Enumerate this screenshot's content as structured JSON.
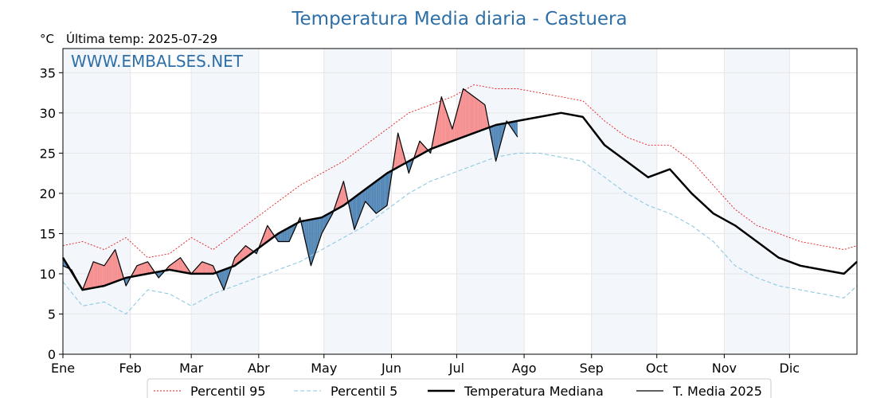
{
  "chart_data": {
    "type": "line",
    "title": "Temperatura Media diaria - Castuera",
    "unit_label": "°C",
    "subtitle": "Última temp: 2025-07-29",
    "watermark": "WWW.EMBALSES.NET",
    "x_axis": "day_of_year",
    "xlim": [
      1,
      366
    ],
    "ylim": [
      0,
      38
    ],
    "y_ticks": [
      0,
      5,
      10,
      15,
      20,
      25,
      30,
      35
    ],
    "month_ticks": [
      {
        "label": "Ene",
        "day": 1
      },
      {
        "label": "Feb",
        "day": 32
      },
      {
        "label": "Mar",
        "day": 60
      },
      {
        "label": "Abr",
        "day": 91
      },
      {
        "label": "May",
        "day": 121
      },
      {
        "label": "Jun",
        "day": 152
      },
      {
        "label": "Jul",
        "day": 182
      },
      {
        "label": "Ago",
        "day": 213
      },
      {
        "label": "Sep",
        "day": 244
      },
      {
        "label": "Oct",
        "day": 274
      },
      {
        "label": "Nov",
        "day": 305
      },
      {
        "label": "Dic",
        "day": 335
      }
    ],
    "shaded_months": [
      [
        1,
        32
      ],
      [
        60,
        91
      ],
      [
        121,
        152
      ],
      [
        182,
        213
      ],
      [
        244,
        274
      ],
      [
        305,
        335
      ]
    ],
    "grid": true,
    "legend": {
      "position": "bottom",
      "entries": [
        "Percentil 95",
        "Percentil 5",
        "Temperatura Mediana",
        "T. Media 2025"
      ]
    },
    "fill_colors": {
      "above_median": "#f47f7f",
      "below_median": "#3a75aa"
    },
    "series": [
      {
        "name": "Percentil 95",
        "color": "#e41a1c",
        "style": "dotted",
        "x": [
          1,
          10,
          20,
          30,
          40,
          50,
          60,
          70,
          80,
          90,
          100,
          110,
          120,
          130,
          140,
          150,
          160,
          170,
          180,
          190,
          200,
          210,
          220,
          230,
          240,
          250,
          260,
          270,
          280,
          290,
          300,
          310,
          320,
          330,
          340,
          350,
          360,
          366
        ],
        "values": [
          13.5,
          14,
          13,
          14.5,
          12,
          12.5,
          14.5,
          13,
          15,
          17,
          19,
          21,
          22.5,
          24,
          26,
          28,
          30,
          31,
          32,
          33.5,
          33,
          33,
          32.5,
          32,
          31.5,
          29,
          27,
          26,
          26,
          24,
          21,
          18,
          16,
          15,
          14,
          13.5,
          13,
          13.5
        ]
      },
      {
        "name": "Percentil 5",
        "color": "#8ec9e0",
        "style": "dashed",
        "x": [
          1,
          10,
          20,
          30,
          40,
          50,
          60,
          70,
          80,
          90,
          100,
          110,
          120,
          130,
          140,
          150,
          160,
          170,
          180,
          190,
          200,
          210,
          220,
          230,
          240,
          250,
          260,
          270,
          280,
          290,
          300,
          310,
          320,
          330,
          340,
          350,
          360,
          366
        ],
        "values": [
          9,
          6,
          6.5,
          5,
          8,
          7.5,
          6,
          7.5,
          8.5,
          9.5,
          10.5,
          11.5,
          13,
          14.5,
          16,
          18,
          20,
          21.5,
          22.5,
          23.5,
          24.5,
          25,
          25,
          24.5,
          24,
          22,
          20,
          18.5,
          17.5,
          16,
          14,
          11,
          9.5,
          8.5,
          8,
          7.5,
          7,
          8.5
        ]
      },
      {
        "name": "Temperatura Mediana",
        "color": "#000000",
        "style": "solid-thick",
        "x": [
          1,
          10,
          20,
          30,
          40,
          50,
          60,
          70,
          80,
          90,
          100,
          110,
          120,
          130,
          140,
          150,
          160,
          170,
          180,
          190,
          200,
          210,
          220,
          230,
          240,
          250,
          260,
          270,
          280,
          290,
          300,
          310,
          320,
          330,
          340,
          350,
          360,
          366
        ],
        "values": [
          12,
          8,
          8.5,
          9.5,
          10,
          10.5,
          10,
          10,
          11,
          13,
          15,
          16.5,
          17,
          18.5,
          20.5,
          22.5,
          24,
          25.5,
          26.5,
          27.5,
          28.5,
          29,
          29.5,
          30,
          29.5,
          26,
          24,
          22,
          23,
          20,
          17.5,
          16,
          14,
          12,
          11,
          10.5,
          10,
          11.5
        ]
      },
      {
        "name": "T. Media 2025",
        "color": "#000000",
        "style": "solid-thin",
        "x": [
          1,
          5,
          10,
          15,
          20,
          25,
          30,
          35,
          40,
          45,
          50,
          55,
          60,
          65,
          70,
          75,
          80,
          85,
          90,
          95,
          100,
          105,
          110,
          115,
          120,
          125,
          130,
          135,
          140,
          145,
          150,
          155,
          160,
          165,
          170,
          175,
          180,
          185,
          190,
          195,
          200,
          205,
          210
        ],
        "values": [
          11,
          10.5,
          8,
          11.5,
          11,
          13,
          8.5,
          11,
          11.5,
          9.5,
          11,
          12,
          10,
          11.5,
          11,
          8,
          12,
          13.5,
          12.5,
          16,
          14,
          14,
          17,
          11,
          15,
          17.5,
          21.5,
          15.5,
          19,
          17.5,
          18.5,
          27.5,
          22.5,
          26.5,
          25,
          32,
          28,
          33,
          32,
          31,
          24,
          29,
          27
        ]
      }
    ]
  }
}
